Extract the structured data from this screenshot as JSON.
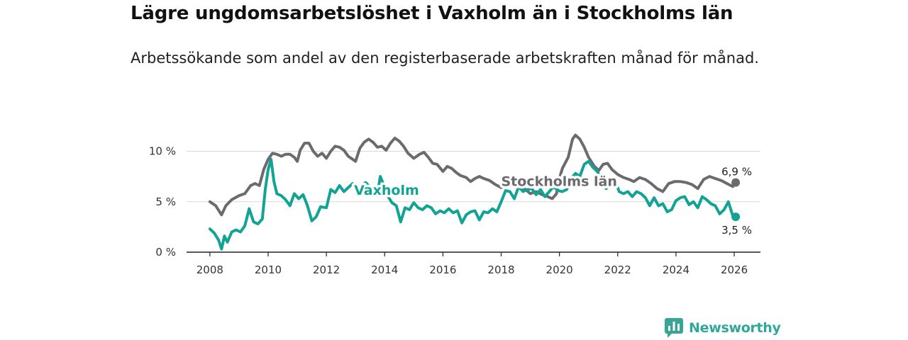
{
  "header": {
    "title": "Lägre ungdomsarbetslöshet i Vaxholm än i Stockholms län",
    "subtitle": "Arbetssökande som andel av den registerbaserade arbetskraften månad för månad."
  },
  "brand": {
    "name": "Newsworthy",
    "icon": "newsworthy-logo-icon",
    "color": "#3aa597"
  },
  "colors": {
    "stockholm": "#6b6b6f",
    "vaxholm": "#12a394",
    "axis": "#222222",
    "grid": "#d9d9d9"
  },
  "chart_data": {
    "type": "line",
    "title": "Lägre ungdomsarbetslöshet i Vaxholm än i Stockholms län",
    "xlabel": "",
    "ylabel": "",
    "xlim": [
      2007.2,
      2026.9
    ],
    "ylim": [
      0,
      12
    ],
    "grid": true,
    "x_ticks": [
      2008,
      2010,
      2012,
      2014,
      2016,
      2018,
      2020,
      2022,
      2024,
      2026
    ],
    "x_tick_labels": [
      "2008",
      "2010",
      "2012",
      "2014",
      "2016",
      "2018",
      "2020",
      "2022",
      "2024",
      "2026"
    ],
    "y_ticks": [
      0,
      5,
      10
    ],
    "y_tick_labels": [
      "0 %",
      "5 %",
      "10 %"
    ],
    "series": [
      {
        "name": "Stockholms län",
        "label": "Stockholms län",
        "end_label": "6,9 %",
        "color": "#6b6b6f",
        "points": [
          [
            2008.0,
            5.0
          ],
          [
            2008.2,
            4.6
          ],
          [
            2008.4,
            3.7
          ],
          [
            2008.55,
            4.6
          ],
          [
            2008.75,
            5.2
          ],
          [
            2009.0,
            5.6
          ],
          [
            2009.2,
            5.8
          ],
          [
            2009.4,
            6.6
          ],
          [
            2009.55,
            6.8
          ],
          [
            2009.7,
            6.6
          ],
          [
            2009.85,
            8.2
          ],
          [
            2010.0,
            9.2
          ],
          [
            2010.15,
            9.8
          ],
          [
            2010.3,
            9.7
          ],
          [
            2010.45,
            9.5
          ],
          [
            2010.6,
            9.7
          ],
          [
            2010.75,
            9.7
          ],
          [
            2010.9,
            9.4
          ],
          [
            2011.0,
            9.0
          ],
          [
            2011.1,
            10.1
          ],
          [
            2011.25,
            10.8
          ],
          [
            2011.4,
            10.8
          ],
          [
            2011.55,
            10.0
          ],
          [
            2011.7,
            9.5
          ],
          [
            2011.85,
            9.8
          ],
          [
            2012.0,
            9.3
          ],
          [
            2012.15,
            10.0
          ],
          [
            2012.3,
            10.5
          ],
          [
            2012.45,
            10.4
          ],
          [
            2012.6,
            10.1
          ],
          [
            2012.75,
            9.5
          ],
          [
            2012.9,
            9.2
          ],
          [
            2013.0,
            9.0
          ],
          [
            2013.15,
            10.3
          ],
          [
            2013.3,
            10.9
          ],
          [
            2013.45,
            11.2
          ],
          [
            2013.6,
            10.9
          ],
          [
            2013.75,
            10.4
          ],
          [
            2013.9,
            10.5
          ],
          [
            2014.05,
            10.1
          ],
          [
            2014.2,
            10.8
          ],
          [
            2014.35,
            11.3
          ],
          [
            2014.5,
            11.0
          ],
          [
            2014.65,
            10.5
          ],
          [
            2014.8,
            9.8
          ],
          [
            2015.0,
            9.3
          ],
          [
            2015.2,
            9.7
          ],
          [
            2015.35,
            9.9
          ],
          [
            2015.5,
            9.4
          ],
          [
            2015.65,
            8.8
          ],
          [
            2015.8,
            8.7
          ],
          [
            2016.0,
            8.0
          ],
          [
            2016.15,
            8.5
          ],
          [
            2016.3,
            8.3
          ],
          [
            2016.45,
            7.9
          ],
          [
            2016.6,
            7.6
          ],
          [
            2016.8,
            7.4
          ],
          [
            2016.95,
            7.0
          ],
          [
            2017.1,
            7.3
          ],
          [
            2017.25,
            7.5
          ],
          [
            2017.4,
            7.3
          ],
          [
            2017.6,
            7.1
          ],
          [
            2017.8,
            6.7
          ],
          [
            2018.0,
            6.4
          ],
          [
            2018.2,
            6.8
          ],
          [
            2018.4,
            6.9
          ],
          [
            2018.6,
            6.5
          ],
          [
            2018.8,
            6.3
          ],
          [
            2019.0,
            5.8
          ],
          [
            2019.2,
            6.0
          ],
          [
            2019.4,
            5.7
          ],
          [
            2019.6,
            5.5
          ],
          [
            2019.75,
            5.3
          ],
          [
            2019.9,
            5.8
          ],
          [
            2020.0,
            7.3
          ],
          [
            2020.1,
            8.3
          ],
          [
            2020.3,
            9.4
          ],
          [
            2020.45,
            11.2
          ],
          [
            2020.55,
            11.6
          ],
          [
            2020.7,
            11.2
          ],
          [
            2020.85,
            10.4
          ],
          [
            2021.0,
            9.4
          ],
          [
            2021.2,
            8.5
          ],
          [
            2021.35,
            8.1
          ],
          [
            2021.5,
            8.7
          ],
          [
            2021.65,
            8.8
          ],
          [
            2021.8,
            8.2
          ],
          [
            2022.0,
            7.7
          ],
          [
            2022.2,
            7.4
          ],
          [
            2022.4,
            7.2
          ],
          [
            2022.55,
            7.0
          ],
          [
            2022.75,
            7.4
          ],
          [
            2022.95,
            7.2
          ],
          [
            2023.15,
            6.8
          ],
          [
            2023.35,
            6.3
          ],
          [
            2023.55,
            6.0
          ],
          [
            2023.75,
            6.8
          ],
          [
            2023.95,
            7.0
          ],
          [
            2024.15,
            7.0
          ],
          [
            2024.35,
            6.9
          ],
          [
            2024.55,
            6.7
          ],
          [
            2024.75,
            6.3
          ],
          [
            2024.95,
            7.2
          ],
          [
            2025.15,
            7.5
          ],
          [
            2025.35,
            7.3
          ],
          [
            2025.55,
            7.1
          ],
          [
            2025.75,
            6.8
          ],
          [
            2025.95,
            6.5
          ],
          [
            2026.05,
            6.9
          ]
        ]
      },
      {
        "name": "Vaxholm",
        "label": "Vaxholm",
        "end_label": "3,5 %",
        "color": "#12a394",
        "points": [
          [
            2008.0,
            2.3
          ],
          [
            2008.15,
            1.9
          ],
          [
            2008.3,
            1.2
          ],
          [
            2008.4,
            0.3
          ],
          [
            2008.5,
            1.6
          ],
          [
            2008.6,
            1.0
          ],
          [
            2008.75,
            2.0
          ],
          [
            2008.9,
            2.2
          ],
          [
            2009.05,
            2.0
          ],
          [
            2009.2,
            2.6
          ],
          [
            2009.35,
            4.3
          ],
          [
            2009.5,
            3.0
          ],
          [
            2009.65,
            2.8
          ],
          [
            2009.8,
            3.3
          ],
          [
            2009.9,
            6.2
          ],
          [
            2010.0,
            8.2
          ],
          [
            2010.1,
            9.2
          ],
          [
            2010.2,
            7.0
          ],
          [
            2010.3,
            5.8
          ],
          [
            2010.45,
            5.6
          ],
          [
            2010.6,
            5.2
          ],
          [
            2010.75,
            4.6
          ],
          [
            2010.9,
            5.8
          ],
          [
            2011.05,
            5.3
          ],
          [
            2011.2,
            5.7
          ],
          [
            2011.35,
            4.6
          ],
          [
            2011.5,
            3.1
          ],
          [
            2011.65,
            3.5
          ],
          [
            2011.8,
            4.5
          ],
          [
            2012.0,
            4.4
          ],
          [
            2012.15,
            6.2
          ],
          [
            2012.3,
            5.9
          ],
          [
            2012.45,
            6.6
          ],
          [
            2012.6,
            6.0
          ],
          [
            2012.75,
            6.4
          ],
          [
            2012.9,
            6.8
          ],
          [
            2013.05,
            6.5
          ],
          [
            2013.2,
            6.6
          ],
          [
            2013.35,
            6.9
          ],
          [
            2013.5,
            6.4
          ],
          [
            2013.6,
            6.0
          ],
          [
            2013.75,
            5.8
          ],
          [
            2013.85,
            7.5
          ],
          [
            2013.95,
            6.8
          ],
          [
            2014.1,
            5.6
          ],
          [
            2014.25,
            4.9
          ],
          [
            2014.4,
            4.6
          ],
          [
            2014.55,
            3.0
          ],
          [
            2014.7,
            4.4
          ],
          [
            2014.85,
            4.2
          ],
          [
            2015.0,
            4.9
          ],
          [
            2015.15,
            4.4
          ],
          [
            2015.3,
            4.2
          ],
          [
            2015.45,
            4.6
          ],
          [
            2015.6,
            4.4
          ],
          [
            2015.75,
            3.8
          ],
          [
            2015.9,
            4.1
          ],
          [
            2016.05,
            3.9
          ],
          [
            2016.2,
            4.3
          ],
          [
            2016.35,
            3.9
          ],
          [
            2016.5,
            4.1
          ],
          [
            2016.65,
            2.9
          ],
          [
            2016.8,
            3.7
          ],
          [
            2016.95,
            4.0
          ],
          [
            2017.1,
            4.1
          ],
          [
            2017.25,
            3.2
          ],
          [
            2017.4,
            4.0
          ],
          [
            2017.55,
            3.9
          ],
          [
            2017.7,
            4.3
          ],
          [
            2017.85,
            4.0
          ],
          [
            2018.0,
            5.0
          ],
          [
            2018.15,
            6.1
          ],
          [
            2018.3,
            6.0
          ],
          [
            2018.45,
            5.3
          ],
          [
            2018.6,
            6.5
          ],
          [
            2018.75,
            6.0
          ],
          [
            2018.9,
            6.2
          ],
          [
            2019.05,
            6.3
          ],
          [
            2019.2,
            5.7
          ],
          [
            2019.35,
            6.2
          ],
          [
            2019.5,
            5.5
          ],
          [
            2019.65,
            6.0
          ],
          [
            2019.8,
            6.5
          ],
          [
            2019.95,
            6.1
          ],
          [
            2020.1,
            6.0
          ],
          [
            2020.25,
            6.2
          ],
          [
            2020.4,
            7.3
          ],
          [
            2020.55,
            7.8
          ],
          [
            2020.7,
            7.5
          ],
          [
            2020.85,
            8.7
          ],
          [
            2021.0,
            9.0
          ],
          [
            2021.15,
            8.4
          ],
          [
            2021.3,
            8.0
          ],
          [
            2021.45,
            7.2
          ],
          [
            2021.6,
            6.3
          ],
          [
            2021.75,
            6.8
          ],
          [
            2021.9,
            7.2
          ],
          [
            2022.05,
            6.0
          ],
          [
            2022.2,
            5.8
          ],
          [
            2022.35,
            6.0
          ],
          [
            2022.5,
            5.5
          ],
          [
            2022.65,
            6.0
          ],
          [
            2022.8,
            5.8
          ],
          [
            2022.95,
            5.4
          ],
          [
            2023.1,
            4.6
          ],
          [
            2023.25,
            5.4
          ],
          [
            2023.4,
            4.6
          ],
          [
            2023.55,
            4.8
          ],
          [
            2023.7,
            4.0
          ],
          [
            2023.85,
            4.2
          ],
          [
            2024.0,
            5.1
          ],
          [
            2024.15,
            5.4
          ],
          [
            2024.3,
            5.5
          ],
          [
            2024.45,
            4.7
          ],
          [
            2024.6,
            5.0
          ],
          [
            2024.75,
            4.4
          ],
          [
            2024.9,
            5.5
          ],
          [
            2025.05,
            5.2
          ],
          [
            2025.2,
            4.8
          ],
          [
            2025.35,
            4.6
          ],
          [
            2025.5,
            3.8
          ],
          [
            2025.65,
            4.2
          ],
          [
            2025.8,
            5.0
          ],
          [
            2025.95,
            3.6
          ],
          [
            2026.05,
            3.5
          ]
        ]
      }
    ]
  }
}
